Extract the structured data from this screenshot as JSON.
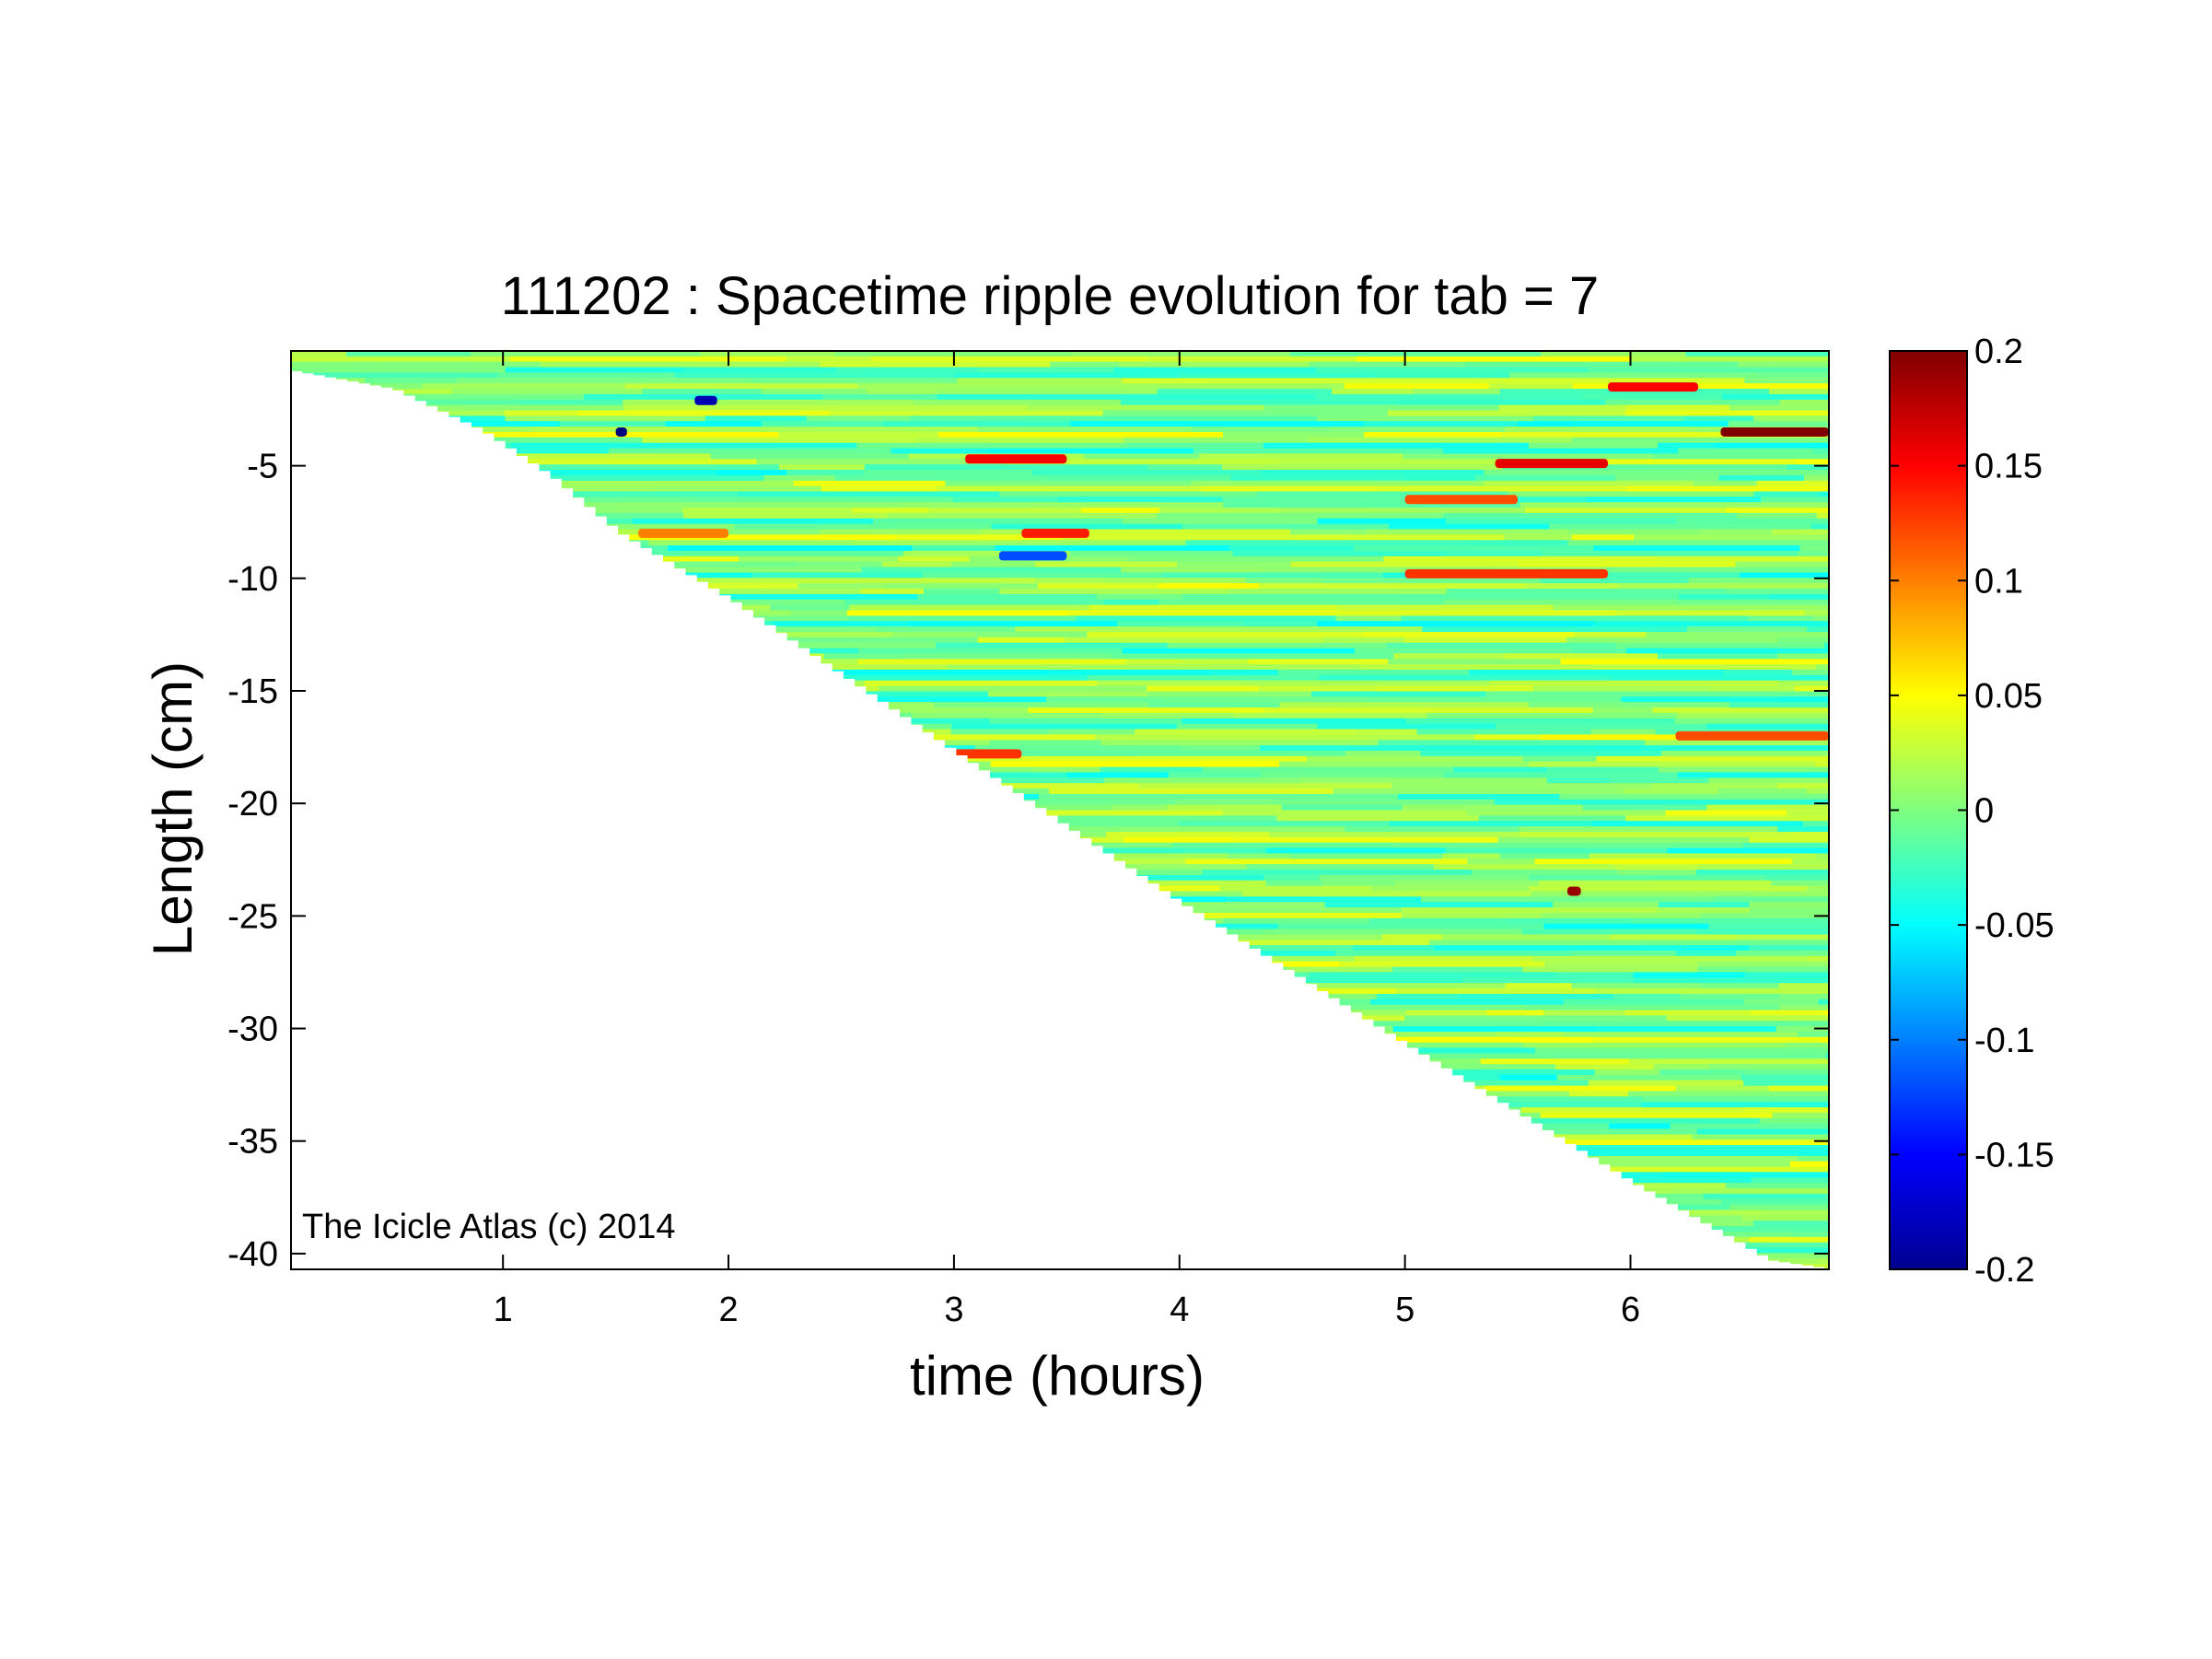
{
  "chart_data": {
    "type": "heatmap",
    "title": "111202 : Spacetime ripple evolution for tab = 7",
    "xlabel": "time (hours)",
    "ylabel": "Length (cm)",
    "xlim": [
      0.06,
      6.88
    ],
    "ylim": [
      -40.7,
      0.1
    ],
    "xticks": [
      1,
      2,
      3,
      4,
      5,
      6
    ],
    "yticks": [
      -5,
      -10,
      -15,
      -20,
      -25,
      -30,
      -35,
      -40
    ],
    "colorbar": {
      "colormap": "jet",
      "clim": [
        -0.2,
        0.2
      ],
      "ticks": [
        0.2,
        0.15,
        0.1,
        0.05,
        0,
        -0.05,
        -0.1,
        -0.15,
        -0.2
      ]
    },
    "annotation": "The Icicle Atlas (c) 2014",
    "data_boundary": {
      "description": "lower edge of measured data (icicle tip position) vs time",
      "time": [
        0.06,
        0.5,
        0.9,
        1.2,
        1.5,
        2.0,
        3.0,
        4.0,
        5.0,
        6.0,
        6.6,
        6.88
      ],
      "length": [
        -0.8,
        -1.6,
        -3.5,
        -5.5,
        -8.0,
        -11.0,
        -17.8,
        -24.5,
        -30.8,
        -36.9,
        -40.3,
        -40.7
      ]
    },
    "features": [
      {
        "t0": 3.05,
        "t1": 3.5,
        "length": -4.7,
        "value": 0.15
      },
      {
        "t0": 3.3,
        "t1": 3.6,
        "length": -8.0,
        "value": 0.14
      },
      {
        "t0": 5.0,
        "t1": 5.9,
        "length": -9.8,
        "value": 0.13
      },
      {
        "t0": 5.4,
        "t1": 5.9,
        "length": -4.9,
        "value": 0.16
      },
      {
        "t0": 6.4,
        "t1": 6.88,
        "length": -3.5,
        "value": 0.2
      },
      {
        "t0": 5.0,
        "t1": 5.5,
        "length": -6.5,
        "value": 0.12
      },
      {
        "t0": 2.8,
        "t1": 3.3,
        "length": -17.8,
        "value": 0.13
      },
      {
        "t0": 6.2,
        "t1": 6.88,
        "length": -17.0,
        "value": 0.12
      },
      {
        "t0": 5.9,
        "t1": 6.3,
        "length": -1.5,
        "value": 0.15
      },
      {
        "t0": 5.72,
        "t1": 5.78,
        "length": -23.9,
        "value": 0.19
      },
      {
        "t0": 1.6,
        "t1": 2.0,
        "length": -8.0,
        "value": 0.1
      },
      {
        "t0": 3.2,
        "t1": 3.5,
        "length": -9.0,
        "value": -0.12
      },
      {
        "t0": 1.5,
        "t1": 1.55,
        "length": -3.5,
        "value": -0.2
      },
      {
        "t0": 1.85,
        "t1": 1.95,
        "length": -2.1,
        "value": -0.18
      }
    ]
  }
}
